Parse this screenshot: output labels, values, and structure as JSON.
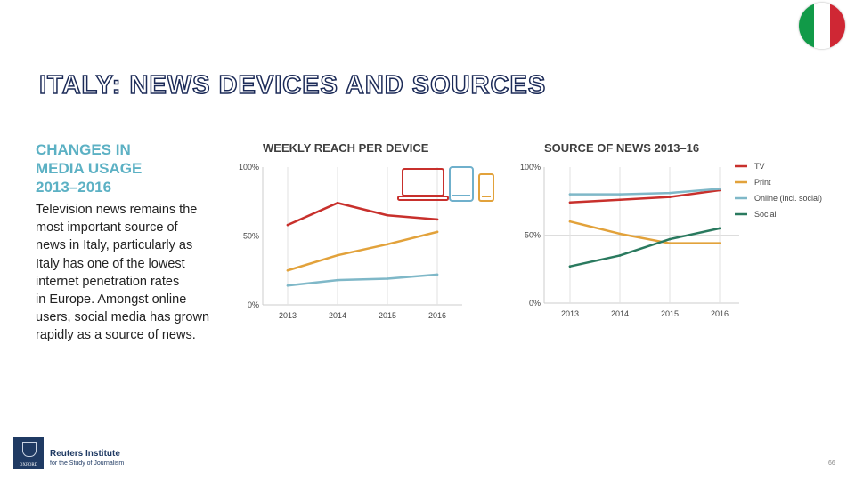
{
  "title": "ITALY: NEWS DEVICES AND SOURCES",
  "sidebar": {
    "heading": [
      "CHANGES IN",
      "MEDIA USAGE",
      "2013–2016"
    ],
    "body": [
      "Television news remains the",
      "most important source of",
      "news in Italy, particularly as",
      "Italy has one of the lowest",
      "internet penetration rates",
      "in Europe. Amongst online",
      "users, social media has grown",
      "rapidly as a source of news."
    ]
  },
  "colors": {
    "tv": "#c8302c",
    "print": "#e2a23b",
    "online": "#7fb8c8",
    "social": "#2a7a5f",
    "laptop": "#c8302c",
    "tablet": "#6fb0cc",
    "phone": "#e2a23b",
    "flag_green": "#119a48",
    "flag_white": "#ffffff",
    "flag_red": "#cf2734"
  },
  "chart_data": [
    {
      "type": "line",
      "title": "WEEKLY REACH PER DEVICE",
      "x": [
        "2013",
        "2014",
        "2015",
        "2016"
      ],
      "y_ticks": [
        "100%",
        "50%",
        "0%"
      ],
      "ylim": [
        0,
        100
      ],
      "grid": true,
      "series": [
        {
          "values": [
            58,
            74,
            65,
            62
          ],
          "color": "#c8302c",
          "icon": "laptop-icon"
        },
        {
          "values": [
            25,
            36,
            44,
            53
          ],
          "color": "#e2a23b",
          "icon": "phone-icon"
        },
        {
          "values": [
            14,
            18,
            19,
            22
          ],
          "color": "#7fb8c8",
          "icon": "tablet-icon"
        }
      ]
    },
    {
      "type": "line",
      "title": "SOURCE OF NEWS 2013–16",
      "x": [
        "2013",
        "2014",
        "2015",
        "2016"
      ],
      "y_ticks": [
        "100%",
        "50%",
        "0%"
      ],
      "ylim": [
        0,
        100
      ],
      "grid": true,
      "legend_position": "right",
      "series": [
        {
          "name": "TV",
          "values": [
            74,
            76,
            78,
            83
          ],
          "color": "#c8302c"
        },
        {
          "name": "Print",
          "values": [
            60,
            51,
            44,
            44
          ],
          "color": "#e2a23b"
        },
        {
          "name": "Online (incl. social)",
          "values": [
            80,
            80,
            81,
            84
          ],
          "color": "#7fb8c8"
        },
        {
          "name": "Social",
          "values": [
            27,
            35,
            47,
            55
          ],
          "color": "#2a7a5f"
        }
      ]
    }
  ],
  "footer": {
    "crest_text": "OXFORD",
    "institute": "Reuters Institute",
    "institute_sub": "for the Study of Journalism",
    "page_number": "66"
  }
}
